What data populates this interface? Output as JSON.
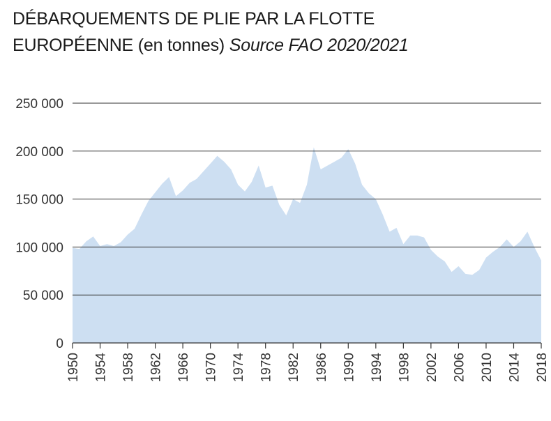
{
  "title": {
    "line1": "DÉBARQUEMENTS DE PLIE PAR LA FLOTTE",
    "line2_main": "EUROPÉENNE (en tonnes) ",
    "line2_source": "Source FAO 2020/2021"
  },
  "colors": {
    "area": "#cddff2",
    "grid": "#333333",
    "axis": "#333333",
    "text": "#333333"
  },
  "chart_data": {
    "type": "area",
    "title": "DÉBARQUEMENTS DE PLIE PAR LA FLOTTE EUROPÉENNE (en tonnes)",
    "subtitle": "Source FAO 2020/2021",
    "xlabel": "",
    "ylabel": "",
    "ylim": [
      0,
      250000
    ],
    "xlim": [
      1950,
      2018
    ],
    "grid": true,
    "y_ticks": [
      0,
      50000,
      100000,
      150000,
      200000,
      250000
    ],
    "y_tick_labels": [
      "0",
      "50 000",
      "100 000",
      "150 000",
      "200 000",
      "250 000"
    ],
    "x_ticks": [
      1950,
      1954,
      1958,
      1962,
      1966,
      1970,
      1974,
      1978,
      1982,
      1986,
      1990,
      1994,
      1998,
      2002,
      2006,
      2010,
      2014,
      2018
    ],
    "x_tick_labels": [
      "1950",
      "1954",
      "1958",
      "1962",
      "1966",
      "1970",
      "1974",
      "1978",
      "1982",
      "1986",
      "1990",
      "1994",
      "1998",
      "2002",
      "2006",
      "2010",
      "2014",
      "2018"
    ],
    "x": [
      1950,
      1951,
      1952,
      1953,
      1954,
      1955,
      1956,
      1957,
      1958,
      1959,
      1960,
      1961,
      1962,
      1963,
      1964,
      1965,
      1966,
      1967,
      1968,
      1969,
      1970,
      1971,
      1972,
      1973,
      1974,
      1975,
      1976,
      1977,
      1978,
      1979,
      1980,
      1981,
      1982,
      1983,
      1984,
      1985,
      1986,
      1987,
      1988,
      1989,
      1990,
      1991,
      1992,
      1993,
      1994,
      1995,
      1996,
      1997,
      1998,
      1999,
      2000,
      2001,
      2002,
      2003,
      2004,
      2005,
      2006,
      2007,
      2008,
      2009,
      2010,
      2011,
      2012,
      2013,
      2014,
      2015,
      2016,
      2017,
      2018
    ],
    "values": [
      99000,
      98000,
      106000,
      111000,
      101000,
      103000,
      101000,
      105000,
      113000,
      119000,
      134000,
      148000,
      157000,
      166000,
      173000,
      153000,
      159000,
      167000,
      171000,
      179000,
      187000,
      195000,
      189000,
      181000,
      165000,
      158000,
      168000,
      185000,
      162000,
      164000,
      144000,
      133000,
      150000,
      146000,
      165000,
      204000,
      181000,
      185000,
      189000,
      193000,
      202000,
      187000,
      165000,
      156000,
      150000,
      134000,
      116000,
      120000,
      103000,
      112000,
      112000,
      110000,
      97000,
      90000,
      85000,
      74000,
      80000,
      72000,
      71000,
      76000,
      89000,
      95000,
      100000,
      108000,
      100000,
      106000,
      116000,
      100000,
      86000
    ]
  }
}
